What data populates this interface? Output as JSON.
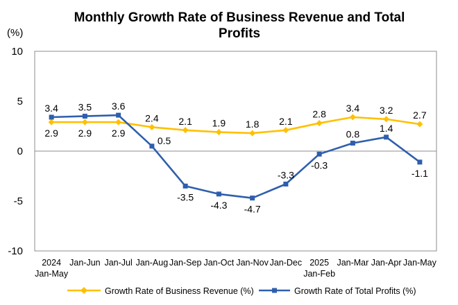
{
  "chart_data": {
    "type": "line",
    "title": "Monthly Growth Rate of Business Revenue and Total Profits",
    "title_lines": [
      "Monthly Growth Rate of Business Revenue and Total",
      "Profits"
    ],
    "ylabel": "(%)",
    "xlabel": "",
    "ylim": [
      -10,
      10
    ],
    "yticks": [
      10,
      5,
      0,
      -5,
      -10
    ],
    "grid": false,
    "legend_position": "bottom",
    "categories": [
      {
        "line1": "2024",
        "line2": "Jan-May"
      },
      {
        "line1": "Jan-Jun",
        "line2": ""
      },
      {
        "line1": "Jan-Jul",
        "line2": ""
      },
      {
        "line1": "Jan-Aug",
        "line2": ""
      },
      {
        "line1": "Jan-Sep",
        "line2": ""
      },
      {
        "line1": "Jan-Oct",
        "line2": ""
      },
      {
        "line1": "Jan-Nov",
        "line2": ""
      },
      {
        "line1": "Jan-Dec",
        "line2": ""
      },
      {
        "line1": "2025",
        "line2": "Jan-Feb"
      },
      {
        "line1": "Jan-Mar",
        "line2": ""
      },
      {
        "line1": "Jan-Apr",
        "line2": ""
      },
      {
        "line1": "Jan-May",
        "line2": ""
      }
    ],
    "series": [
      {
        "name": "Growth Rate of Business Revenue (%)",
        "color": "#FFC000",
        "marker": "diamond",
        "values": [
          2.9,
          2.9,
          2.9,
          2.4,
          2.1,
          1.9,
          1.8,
          2.1,
          2.8,
          3.4,
          3.2,
          2.7
        ],
        "labels": [
          "2.9",
          "2.9",
          "2.9",
          "2.4",
          "2.1",
          "1.9",
          "1.8",
          "2.1",
          "2.8",
          "3.4",
          "3.2",
          "2.7"
        ],
        "label_side": [
          "below",
          "below",
          "below",
          "above",
          "above",
          "above",
          "above",
          "above",
          "above",
          "above",
          "above",
          "above"
        ]
      },
      {
        "name": "Growth Rate of Total Profits (%)",
        "color": "#2E5FAD",
        "marker": "square",
        "values": [
          3.4,
          3.5,
          3.6,
          0.5,
          -3.5,
          -4.3,
          -4.7,
          -3.3,
          -0.3,
          0.8,
          1.4,
          -1.1
        ],
        "labels": [
          "3.4",
          "3.5",
          "3.6",
          "0.5",
          "-3.5",
          "-4.3",
          "-4.7",
          "-3.3",
          "-0.3",
          "0.8",
          "1.4",
          "-1.1"
        ],
        "label_side": [
          "above",
          "above",
          "above",
          "below-right",
          "below",
          "below",
          "below",
          "above",
          "below",
          "above",
          "above",
          "below"
        ]
      }
    ]
  }
}
